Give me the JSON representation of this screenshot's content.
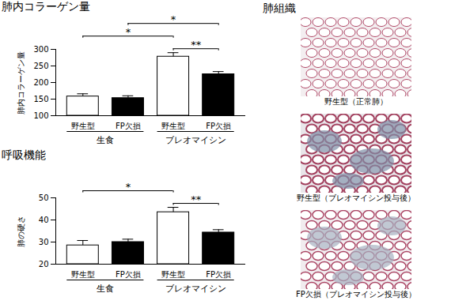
{
  "chart_data": [
    {
      "type": "bar",
      "title": "肺内コラーゲン量",
      "y_label": "肺内コラーゲン量",
      "categories": [
        "野生型",
        "FP欠損",
        "野生型",
        "FP欠損"
      ],
      "groups": [
        {
          "label": "生食",
          "from": 0,
          "to": 1
        },
        {
          "label": "ブレオマイシン",
          "from": 2,
          "to": 3
        }
      ],
      "values": [
        158,
        153,
        278,
        225
      ],
      "errors": [
        8,
        7,
        12,
        8
      ],
      "colors": [
        "#ffffff",
        "#000000",
        "#ffffff",
        "#000000"
      ],
      "ylim": [
        100,
        300
      ],
      "yticks": [
        100,
        150,
        200,
        250,
        300
      ],
      "significance": [
        {
          "label": "**",
          "from": 2,
          "to": 3
        },
        {
          "label": "*",
          "from": 0,
          "to": 2
        },
        {
          "label": "*",
          "from": 1,
          "to": 3
        }
      ]
    },
    {
      "type": "bar",
      "title": "呼吸機能",
      "y_label": "肺の硬さ",
      "categories": [
        "野生型",
        "FP欠損",
        "野生型",
        "FP欠損"
      ],
      "groups": [
        {
          "label": "生食",
          "from": 0,
          "to": 1
        },
        {
          "label": "ブレオマイシン",
          "from": 2,
          "to": 3
        }
      ],
      "values": [
        28.5,
        30,
        43.5,
        34.3
      ],
      "errors": [
        2.2,
        1.3,
        2.2,
        1.3
      ],
      "colors": [
        "#ffffff",
        "#000000",
        "#ffffff",
        "#000000"
      ],
      "ylim": [
        20,
        50
      ],
      "yticks": [
        20,
        30,
        40,
        50
      ],
      "significance": [
        {
          "label": "**",
          "from": 2,
          "to": 3
        },
        {
          "label": "*",
          "from": 0,
          "to": 2
        }
      ]
    }
  ],
  "images": {
    "title": "肺組織",
    "captions": [
      "野生型（正常肺）",
      "野生型（ブレオマイシン投与後）",
      "FP欠損（ブレオマイシン投与後）"
    ]
  }
}
